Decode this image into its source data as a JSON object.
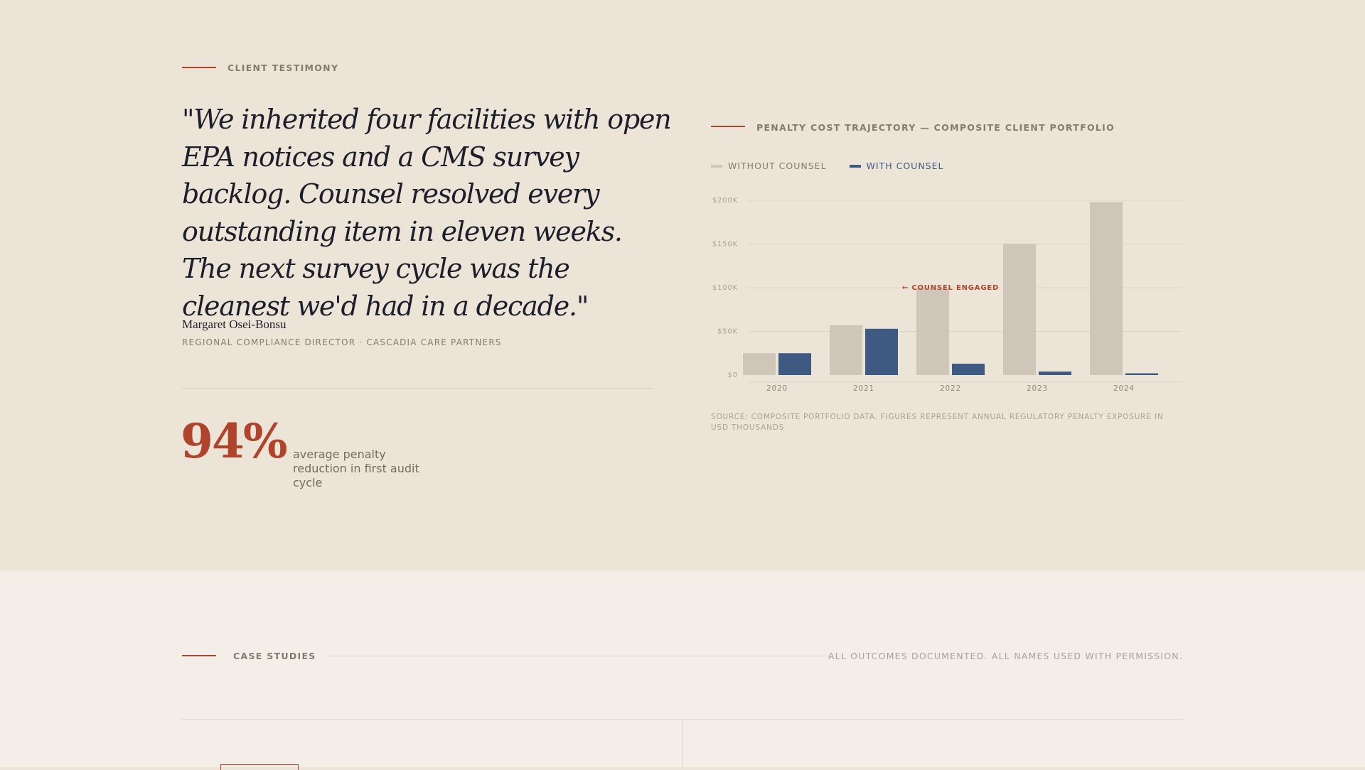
{
  "testimony": {
    "eyebrow": "CLIENT TESTIMONY",
    "quote": "\"We inherited four facilities with open EPA notices and a CMS survey backlog. Counsel resolved every outstanding item in eleven weeks. The next survey cycle was the cleanest we'd had in a decade.\"",
    "author_name": "Margaret Osei-Bonsu",
    "author_role": "REGIONAL COMPLIANCE DIRECTOR · CASCADIA CARE PARTNERS",
    "stat_value": "94%",
    "stat_label": "average penalty reduction in first audit cycle"
  },
  "chart": {
    "title": "PENALTY COST TRAJECTORY — COMPOSITE CLIENT PORTFOLIO",
    "legend": [
      {
        "label": "WITHOUT COUNSEL",
        "color": "#cfc5b9"
      },
      {
        "label": "WITH COUNSEL",
        "color": "#3f5a82"
      }
    ],
    "source": "SOURCE: COMPOSITE PORTFOLIO DATA. FIGURES REPRESENT ANNUAL REGULATORY PENALTY EXPOSURE IN USD THOUSANDS"
  },
  "chart_data": {
    "type": "bar",
    "categories": [
      "2020",
      "2021",
      "2022",
      "2023",
      "2024"
    ],
    "series": [
      {
        "name": "WITHOUT COUNSEL",
        "values": [
          25,
          57,
          99,
          150,
          198
        ],
        "color": "#cfc5b9"
      },
      {
        "name": "WITH COUNSEL",
        "values": [
          25,
          53,
          13,
          4,
          2
        ],
        "color": "#3f5a82"
      }
    ],
    "y_ticks": [
      "$0",
      "$50K",
      "$100K",
      "$150K",
      "$200K"
    ],
    "ylim": [
      0,
      200
    ],
    "annotation": {
      "text": "← COUNSEL ENGAGED",
      "category": "2022",
      "value": 100,
      "color": "#b0432b"
    },
    "grid": true
  },
  "case_studies": {
    "eyebrow": "CASE STUDIES",
    "note": "ALL OUTCOMES DOCUMENTED. ALL NAMES USED WITH PERMISSION."
  }
}
